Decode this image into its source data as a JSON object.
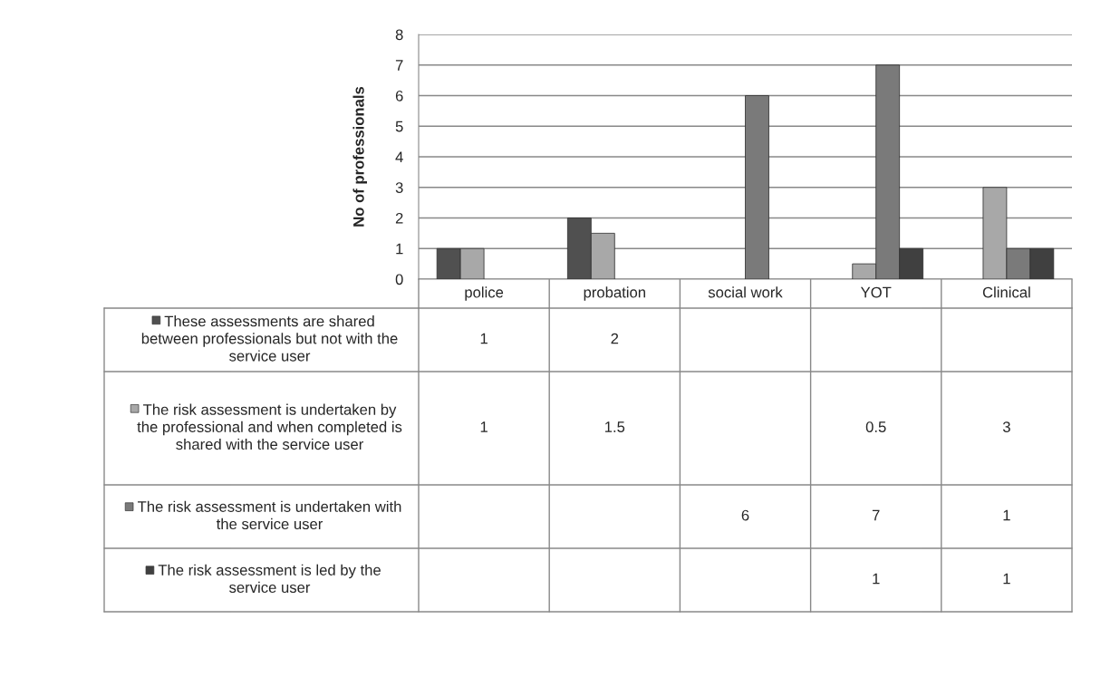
{
  "chart_data": {
    "type": "bar",
    "ylabel": "No of professionals",
    "categories": [
      "police",
      "probation",
      "social work",
      "YOT",
      "Clinical"
    ],
    "series": [
      {
        "name": "These assessments are shared between professionals but not with the service user",
        "color": "#505050",
        "values": [
          1,
          2,
          null,
          null,
          null
        ]
      },
      {
        "name": "The risk assessment is undertaken by the professional and when completed is shared with the service user",
        "color": "#a8a8a8",
        "values": [
          1,
          1.5,
          null,
          0.5,
          3
        ]
      },
      {
        "name": "The risk assessment is undertaken with the service user",
        "color": "#7a7a7a",
        "values": [
          null,
          null,
          6,
          7,
          1
        ]
      },
      {
        "name": "The risk assessment is led by the service user",
        "color": "#404040",
        "values": [
          null,
          null,
          null,
          1,
          1
        ]
      }
    ],
    "ylim": [
      0,
      8
    ],
    "yticks": [
      0,
      1,
      2,
      3,
      4,
      5,
      6,
      7,
      8
    ],
    "grid": "y",
    "data_labels": true,
    "legend": "bottom left"
  }
}
